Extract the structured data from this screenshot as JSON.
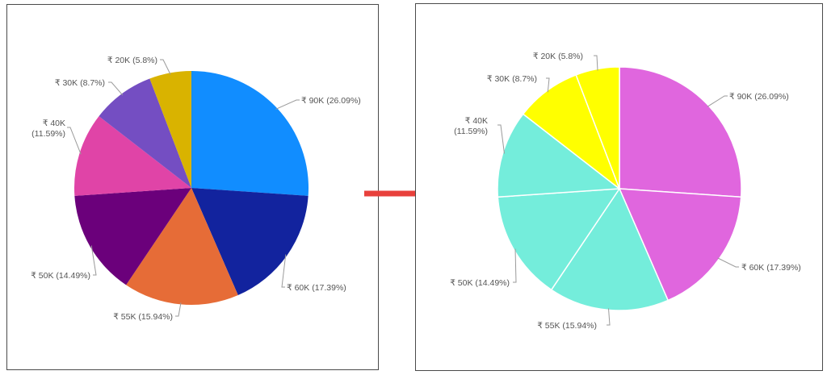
{
  "chart_data": [
    {
      "type": "pie",
      "slices": [
        {
          "label": "₹ 90K (26.09%)",
          "value": 90,
          "color": "#118DFF"
        },
        {
          "label": "₹ 60K (17.39%)",
          "value": 60,
          "color": "#12239E"
        },
        {
          "label": "₹ 55K (15.94%)",
          "value": 55,
          "color": "#E66C37"
        },
        {
          "label": "₹ 50K (14.49%)",
          "value": 50,
          "color": "#6B007B"
        },
        {
          "label": "₹ 40K (11.59%)",
          "value": 40,
          "color": "#E044A7"
        },
        {
          "label": "₹ 30K (8.7%)",
          "value": 30,
          "color": "#744EC2"
        },
        {
          "label": "₹ 20K (5.8%)",
          "value": 20,
          "color": "#D9B300"
        }
      ]
    },
    {
      "type": "pie",
      "slices": [
        {
          "label": "₹ 90K (26.09%)",
          "value": 90,
          "color": "#E066DE"
        },
        {
          "label": "₹ 60K (17.39%)",
          "value": 60,
          "color": "#E066DE"
        },
        {
          "label": "₹ 55K (15.94%)",
          "value": 55,
          "color": "#74EDDB"
        },
        {
          "label": "₹ 50K (14.49%)",
          "value": 50,
          "color": "#74EDDB"
        },
        {
          "label": "₹ 40K (11.59%)",
          "value": 40,
          "color": "#74EDDB"
        },
        {
          "label": "₹ 30K (8.7%)",
          "value": 30,
          "color": "#FFFF00"
        },
        {
          "label": "₹ 20K (5.8%)",
          "value": 20,
          "color": "#FFFF00"
        }
      ]
    }
  ],
  "arrow_color": "#E8413C"
}
